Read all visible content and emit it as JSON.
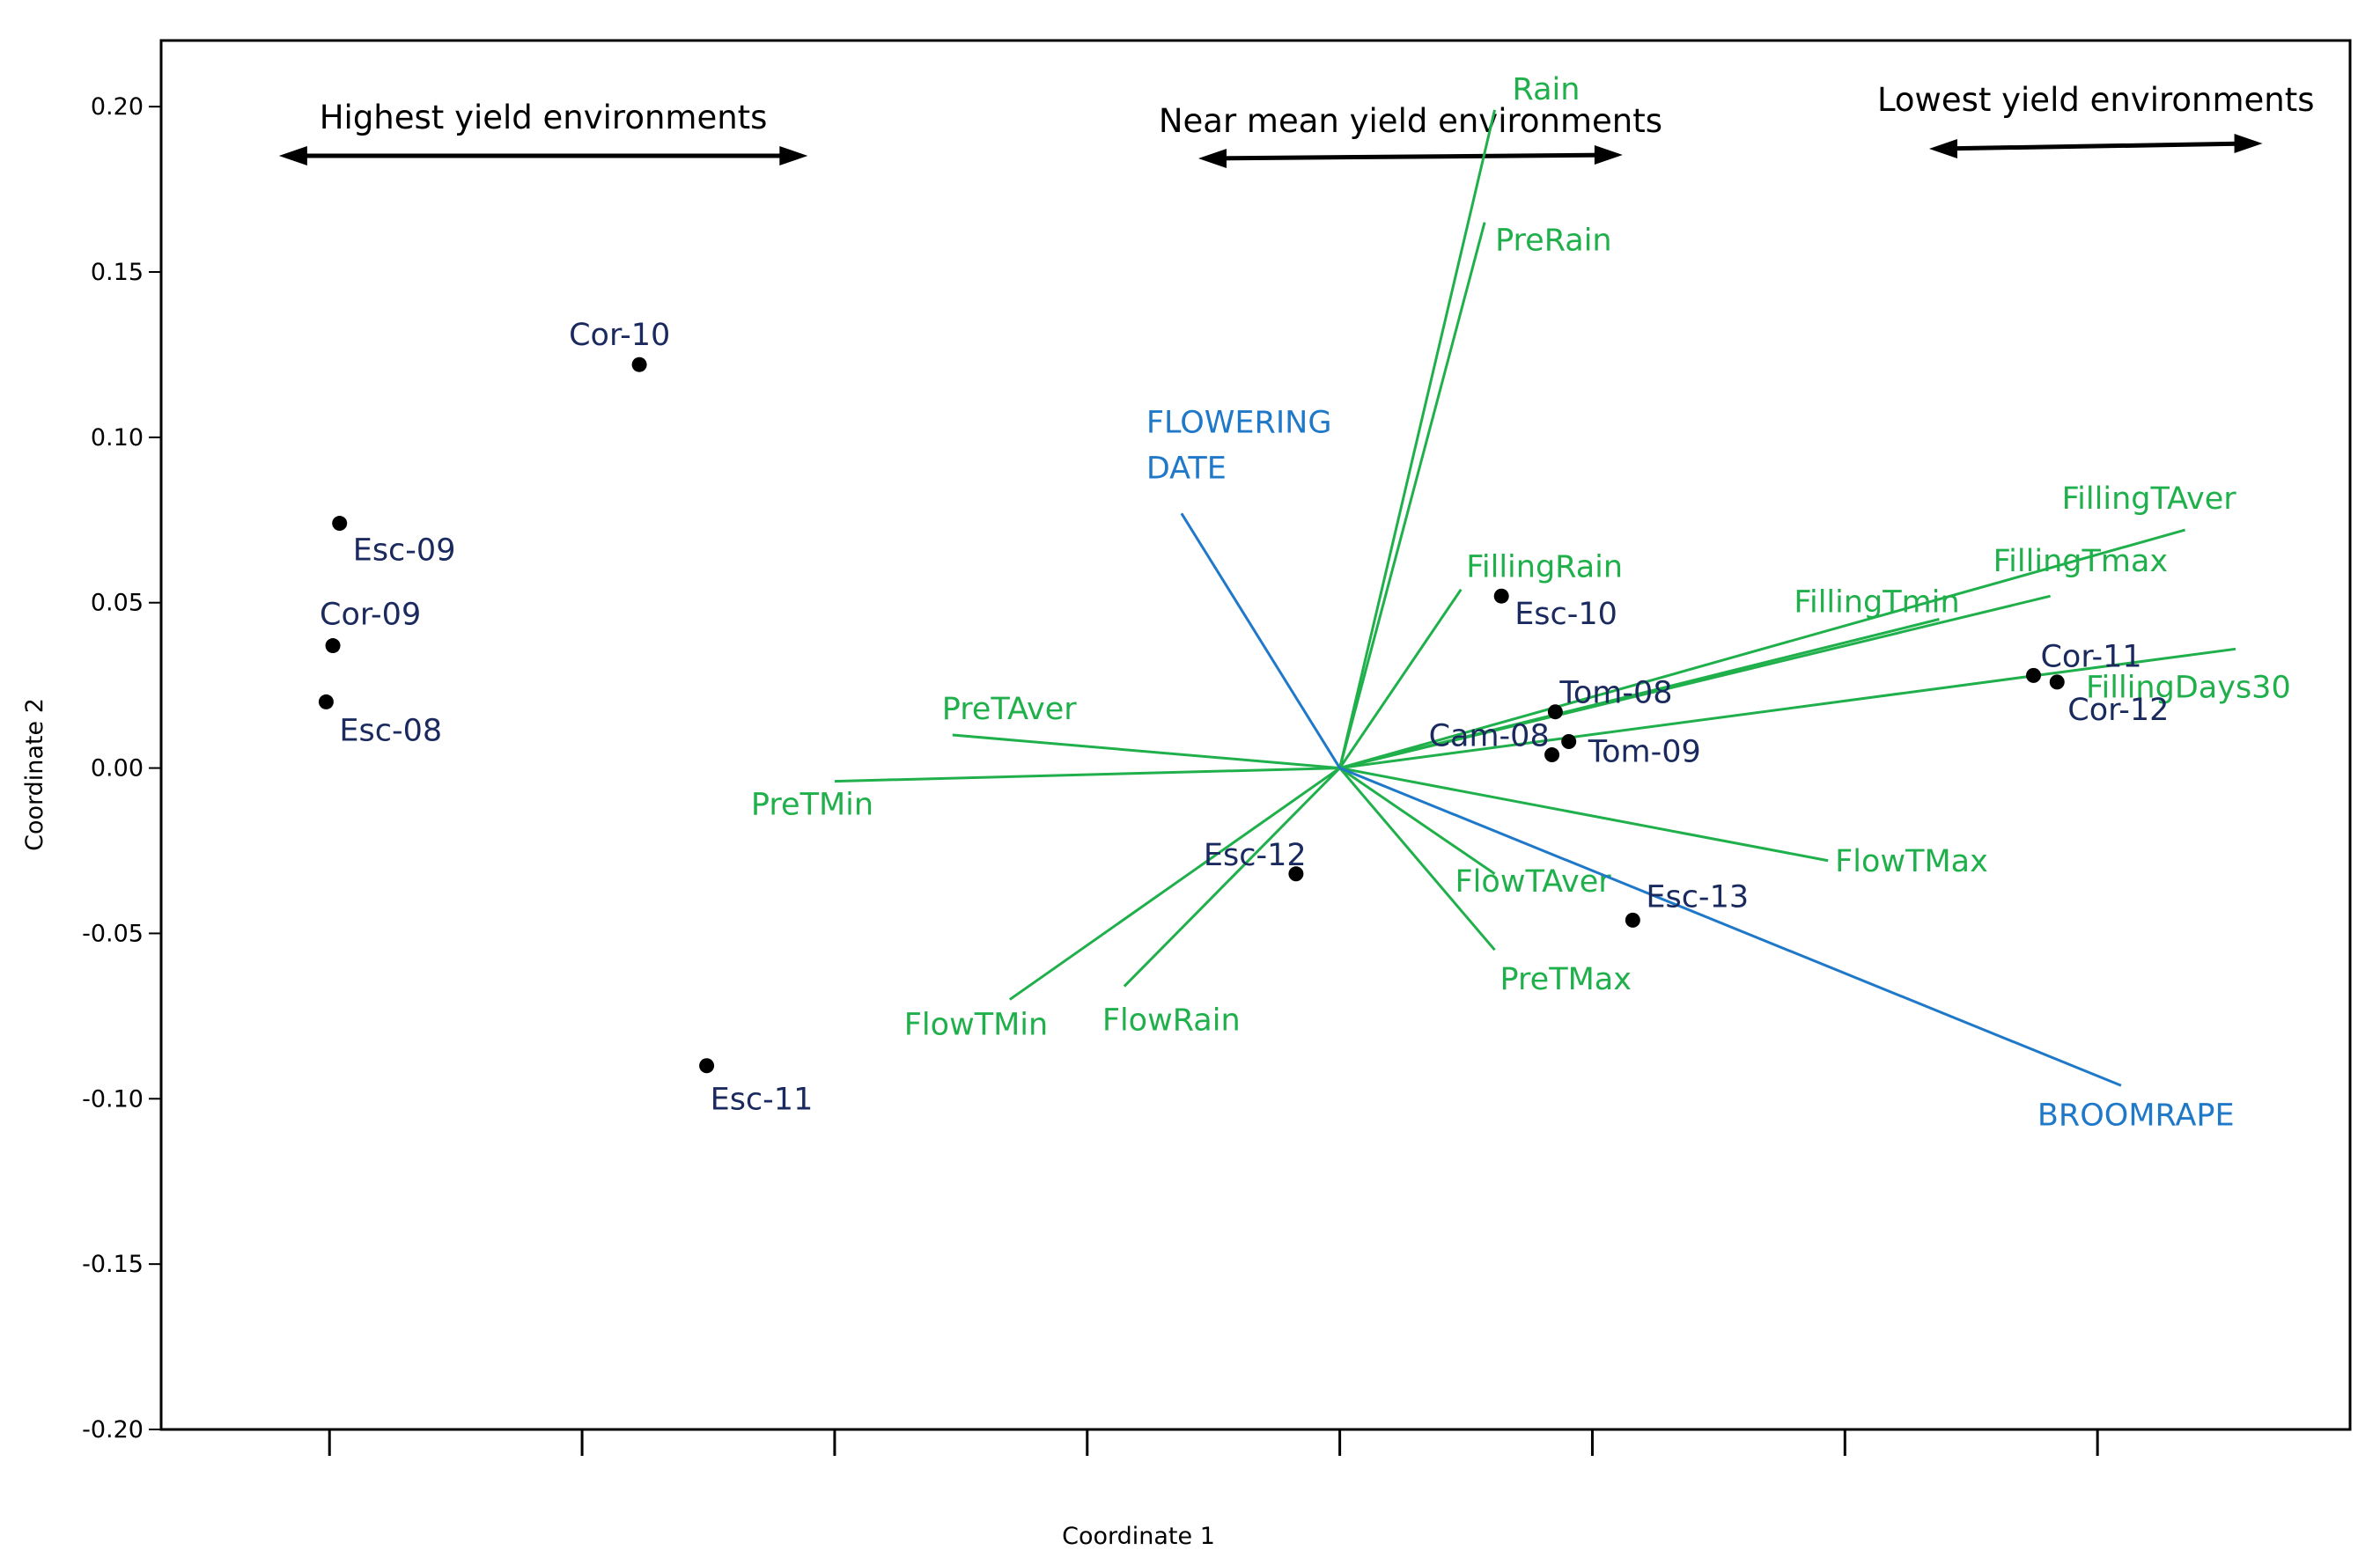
{
  "chart_data": {
    "type": "biplot",
    "xlabel": "Coordinate 1",
    "ylabel": "Coordinate 2",
    "xlim": [
      -0.35,
      0.3
    ],
    "ylim": [
      -0.2,
      0.22
    ],
    "yticks": [
      0.2,
      0.15,
      0.1,
      0.05,
      0.0,
      -0.05,
      -0.1,
      -0.15,
      -0.2
    ],
    "ytick_labels": [
      "0.20",
      "0.15",
      "0.10",
      "0.05",
      "0.00",
      "-0.05",
      "-0.10",
      "-0.15",
      "-0.20"
    ],
    "xticks": [
      -0.3,
      -0.225,
      -0.15,
      -0.075,
      0.0,
      0.075,
      0.15,
      0.225
    ],
    "origin": [
      0.0,
      0.0
    ],
    "colors": {
      "point": "#000000",
      "point_label": "#1a2a5e",
      "env_vector": "#20b04b",
      "trait_vector": "#1f78c8",
      "axis": "#000000"
    },
    "points": [
      {
        "name": "Cor-10",
        "x": -0.208,
        "y": 0.122
      },
      {
        "name": "Esc-09",
        "x": -0.297,
        "y": 0.074
      },
      {
        "name": "Cor-09",
        "x": -0.299,
        "y": 0.037
      },
      {
        "name": "Esc-08",
        "x": -0.301,
        "y": 0.02
      },
      {
        "name": "Esc-11",
        "x": -0.188,
        "y": -0.09
      },
      {
        "name": "Esc-10",
        "x": 0.048,
        "y": 0.052
      },
      {
        "name": "Tom-08",
        "x": 0.064,
        "y": 0.017
      },
      {
        "name": "Cam-08",
        "x": 0.063,
        "y": 0.004
      },
      {
        "name": "Tom-09",
        "x": 0.068,
        "y": 0.008
      },
      {
        "name": "Esc-12",
        "x": -0.013,
        "y": -0.032
      },
      {
        "name": "Esc-13",
        "x": 0.087,
        "y": -0.046
      },
      {
        "name": "Cor-11",
        "x": 0.206,
        "y": 0.028
      },
      {
        "name": "Cor-12",
        "x": 0.213,
        "y": 0.026
      }
    ],
    "env_vectors": [
      {
        "name": "Rain",
        "x": 0.046,
        "y": 0.199
      },
      {
        "name": "PreRain",
        "x": 0.043,
        "y": 0.165
      },
      {
        "name": "FillingRain",
        "x": 0.036,
        "y": 0.054
      },
      {
        "name": "FillingTAver",
        "x": 0.251,
        "y": 0.072
      },
      {
        "name": "FillingTmax",
        "x": 0.211,
        "y": 0.052
      },
      {
        "name": "FillingTmin",
        "x": 0.178,
        "y": 0.045
      },
      {
        "name": "FillingDays30",
        "x": 0.266,
        "y": 0.036
      },
      {
        "name": "PreTAver",
        "x": -0.115,
        "y": 0.01
      },
      {
        "name": "PreTMin",
        "x": -0.15,
        "y": -0.004
      },
      {
        "name": "FlowTMax",
        "x": 0.145,
        "y": -0.028
      },
      {
        "name": "FlowTAver",
        "x": 0.046,
        "y": -0.032
      },
      {
        "name": "PreTMax",
        "x": 0.046,
        "y": -0.055
      },
      {
        "name": "FlowTMin",
        "x": -0.098,
        "y": -0.07
      },
      {
        "name": "FlowRain",
        "x": -0.064,
        "y": -0.066
      }
    ],
    "trait_vectors": [
      {
        "name": "FLOWERING DATE",
        "label_lines": [
          "FLOWERING",
          "DATE"
        ],
        "x": -0.047,
        "y": 0.077
      },
      {
        "name": "BROOMRAPE",
        "label_lines": [
          "BROOMRAPE"
        ],
        "x": 0.232,
        "y": -0.096
      }
    ],
    "yield_bands": [
      {
        "label": "Highest yield environments",
        "x_from": -0.315,
        "x_to": -0.158
      },
      {
        "label": "Near mean yield environments",
        "x_from": -0.042,
        "x_to": 0.084
      },
      {
        "label": "Lowest yield environments",
        "x_from": 0.175,
        "x_to": 0.274
      }
    ]
  }
}
